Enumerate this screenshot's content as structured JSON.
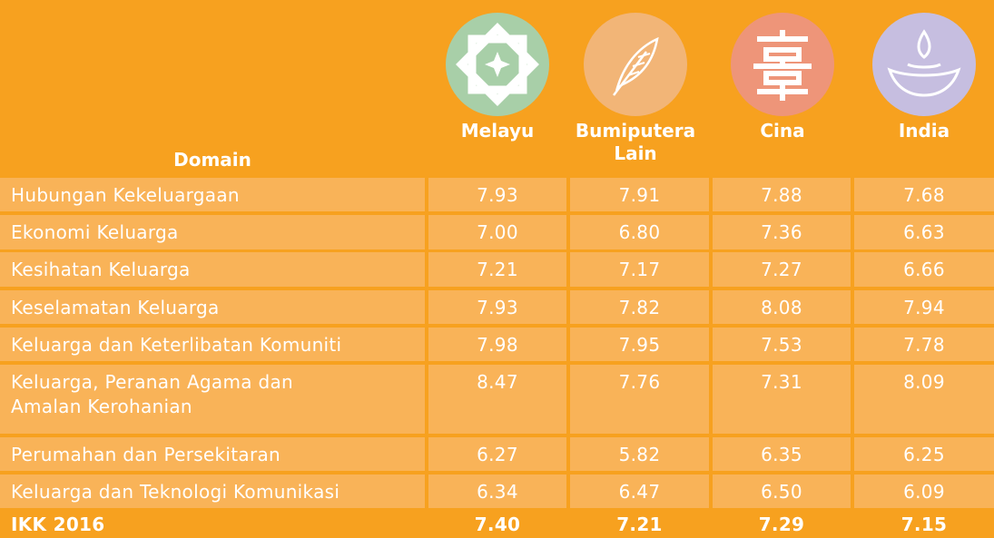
{
  "header": {
    "domain_label": "Domain",
    "groups": [
      "Melayu",
      "Bumiputera\nLain",
      "Cina",
      "India"
    ]
  },
  "table": {
    "rows": [
      [
        "Hubungan Kekeluargaan",
        "7.93",
        "7.91",
        "7.88",
        "7.68"
      ],
      [
        "Ekonomi Keluarga",
        "7.00",
        "6.80",
        "7.36",
        "6.63"
      ],
      [
        "Kesihatan Keluarga",
        "7.21",
        "7.17",
        "7.27",
        "6.66"
      ],
      [
        "Keselamatan Keluarga",
        "7.93",
        "7.82",
        "8.08",
        "7.94"
      ],
      [
        "Keluarga dan Keterlibatan Komuniti",
        "7.98",
        "7.95",
        "7.53",
        "7.78"
      ],
      [
        "Keluarga, Peranan Agama dan\nAmalan Kerohanian",
        "8.47",
        "7.76",
        "7.31",
        "8.09"
      ],
      [
        "Perumahan dan Persekitaran",
        "6.27",
        "5.82",
        "6.35",
        "6.25"
      ],
      [
        "Keluarga dan Teknologi Komunikasi",
        "6.34",
        "6.47",
        "6.50",
        "6.09"
      ]
    ],
    "total": [
      "IKK 2016",
      "7.40",
      "7.21",
      "7.29",
      "7.15"
    ]
  }
}
